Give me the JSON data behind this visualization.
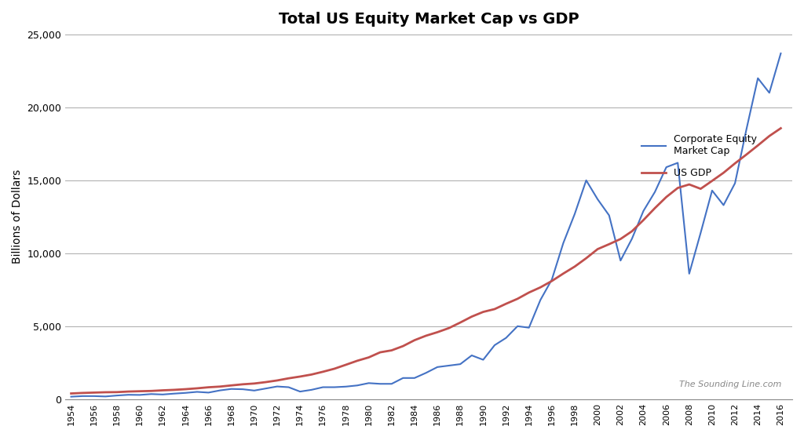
{
  "title": "Total US Equity Market Cap vs GDP",
  "ylabel": "Billions of Dollars",
  "watermark": "The Sounding Line.com",
  "line_equity_color": "#4472C4",
  "line_gdp_color": "#C0504D",
  "legend_equity": "Corporate Equity\nMarket Cap",
  "legend_gdp": "US GDP",
  "ylim": [
    0,
    25000
  ],
  "yticks": [
    0,
    5000,
    10000,
    15000,
    20000,
    25000
  ],
  "background_color": "#FFFFFF",
  "grid_color": "#AAAAAA",
  "years": [
    1954,
    1955,
    1956,
    1957,
    1958,
    1959,
    1960,
    1961,
    1962,
    1963,
    1964,
    1965,
    1966,
    1967,
    1968,
    1969,
    1970,
    1971,
    1972,
    1973,
    1974,
    1975,
    1976,
    1977,
    1978,
    1979,
    1980,
    1981,
    1982,
    1983,
    1984,
    1985,
    1986,
    1987,
    1988,
    1989,
    1990,
    1991,
    1992,
    1993,
    1994,
    1995,
    1996,
    1997,
    1998,
    1999,
    2000,
    2001,
    2002,
    2003,
    2004,
    2005,
    2006,
    2007,
    2008,
    2009,
    2010,
    2011,
    2012,
    2013,
    2014,
    2015,
    2016
  ],
  "equity": [
    170,
    210,
    210,
    185,
    250,
    300,
    290,
    350,
    320,
    380,
    430,
    500,
    450,
    600,
    700,
    680,
    590,
    730,
    870,
    820,
    520,
    640,
    820,
    820,
    860,
    940,
    1100,
    1050,
    1050,
    1450,
    1450,
    1800,
    2200,
    2300,
    2400,
    3000,
    2700,
    3700,
    4200,
    5000,
    4900,
    6800,
    8200,
    10700,
    12700,
    15000,
    13700,
    12600,
    9500,
    11000,
    12900,
    14200,
    15900,
    16200,
    8600,
    11400,
    14300,
    13300,
    14800,
    18500,
    22000,
    21000,
    23700
  ],
  "gdp": [
    390,
    426,
    450,
    474,
    482,
    522,
    543,
    563,
    605,
    638,
    685,
    743,
    815,
    861,
    942,
    1019,
    1073,
    1168,
    1282,
    1428,
    1549,
    1688,
    1878,
    2086,
    2356,
    2632,
    2862,
    3211,
    3345,
    3638,
    4041,
    4347,
    4590,
    4870,
    5253,
    5658,
    5980,
    6174,
    6539,
    6879,
    7309,
    7664,
    8100,
    8609,
    9089,
    9661,
    10285,
    10622,
    10978,
    11511,
    12275,
    13094,
    13856,
    14478,
    14719,
    14419,
    14964,
    15518,
    16163,
    16768,
    17393,
    18037,
    18569
  ],
  "xticks": [
    1954,
    1956,
    1958,
    1960,
    1962,
    1964,
    1966,
    1968,
    1970,
    1972,
    1974,
    1976,
    1978,
    1980,
    1982,
    1984,
    1986,
    1988,
    1990,
    1992,
    1994,
    1996,
    1998,
    2000,
    2002,
    2004,
    2006,
    2008,
    2010,
    2012,
    2014,
    2016
  ]
}
